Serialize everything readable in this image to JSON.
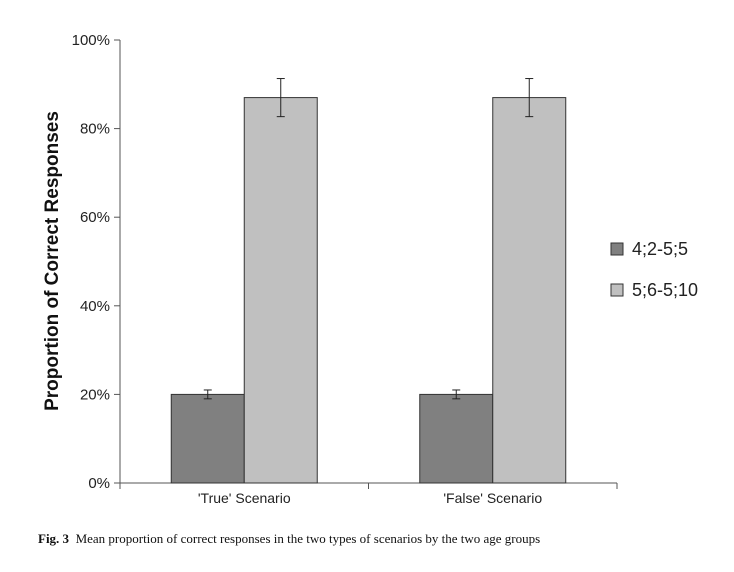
{
  "chart_data": {
    "type": "bar",
    "categories": [
      "'True' Scenario",
      "'False' Scenario"
    ],
    "series": [
      {
        "name": "4;2-5;5",
        "values": [
          20,
          20
        ],
        "error": [
          1,
          1
        ],
        "color": "#808080"
      },
      {
        "name": "5;6-5;10",
        "values": [
          87,
          87
        ],
        "error": [
          4.3,
          4.3
        ],
        "color": "#c0c0c0"
      }
    ],
    "ylabel": "Proportion of Correct Responses",
    "xlabel": "",
    "ylim": [
      0,
      100
    ],
    "yticks": [
      "0%",
      "20%",
      "40%",
      "60%",
      "80%",
      "100%"
    ],
    "grid": false,
    "legend_position": "right"
  },
  "caption": {
    "label": "Fig. 3",
    "text": "Mean proportion of correct responses in the two types of scenarios by the two age groups"
  }
}
